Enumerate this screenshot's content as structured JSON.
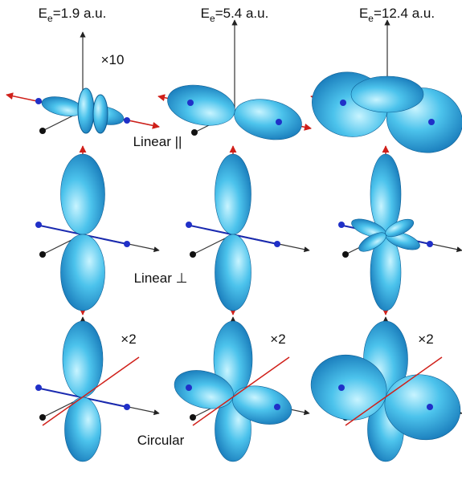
{
  "columns": [
    {
      "symbol": "E",
      "subscript": "e",
      "value": "=1.9 a.u."
    },
    {
      "symbol": "E",
      "subscript": "e",
      "value": "=5.4 a.u."
    },
    {
      "symbol": "E",
      "subscript": "e",
      "value": "=12.4 a.u."
    }
  ],
  "rows": [
    {
      "label": "Linear ||",
      "scales": [
        "×10",
        null,
        null
      ]
    },
    {
      "label": "Linear ⊥",
      "scales": [
        null,
        null,
        null
      ]
    },
    {
      "label": "Circular",
      "scales": [
        "×2",
        "×2",
        "×2"
      ]
    }
  ]
}
